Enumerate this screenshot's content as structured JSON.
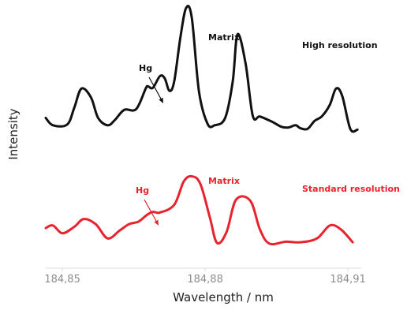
{
  "chart_data": {
    "type": "line",
    "title": "",
    "xlabel": "Wavelength / nm",
    "ylabel": "Intensity",
    "x_ticks": [
      {
        "value": 184.85,
        "label": "184,85"
      },
      {
        "value": 184.88,
        "label": "184,88"
      },
      {
        "value": 184.91,
        "label": "184,91"
      }
    ],
    "xlim": [
      184.8465,
      184.9128
    ],
    "ylim": [
      0,
      1
    ],
    "grid": false,
    "legend": "none",
    "series": [
      {
        "name": "High resolution",
        "color": "#111111",
        "x": [
          184.8465,
          184.848,
          184.851,
          184.8525,
          184.854,
          184.856,
          184.8575,
          184.8595,
          184.861,
          184.863,
          184.8655,
          184.8675,
          184.868,
          184.869,
          184.8705,
          184.8715,
          184.8725,
          184.8735,
          184.8748,
          184.876,
          184.8772,
          184.8787,
          184.8805,
          184.882,
          184.8842,
          184.8858,
          184.8868,
          184.8885,
          184.89,
          184.8915,
          184.894,
          184.896,
          184.8975,
          184.899,
          184.9,
          184.9015,
          184.903,
          184.9045,
          184.9062,
          184.9075,
          184.9088,
          184.9105,
          184.912
        ],
        "y": [
          0.25,
          0.2,
          0.205,
          0.32,
          0.45,
          0.39,
          0.25,
          0.2,
          0.235,
          0.305,
          0.31,
          0.45,
          0.465,
          0.455,
          0.535,
          0.52,
          0.435,
          0.5,
          0.8,
          1.0,
          0.93,
          0.43,
          0.21,
          0.2,
          0.25,
          0.5,
          0.82,
          0.62,
          0.265,
          0.26,
          0.225,
          0.19,
          0.185,
          0.2,
          0.18,
          0.175,
          0.23,
          0.26,
          0.34,
          0.45,
          0.4,
          0.175,
          0.17
        ]
      },
      {
        "name": "Standard resolution",
        "color": "#e8232e",
        "x": [
          184.8465,
          184.848,
          184.85,
          184.8525,
          184.8545,
          184.857,
          184.8595,
          184.862,
          184.864,
          184.866,
          184.8677,
          184.869,
          184.8705,
          184.8735,
          184.8755,
          184.8772,
          184.879,
          184.881,
          184.8825,
          184.8845,
          184.8865,
          184.8895,
          184.8915,
          184.8935,
          184.897,
          184.9,
          184.9035,
          184.9062,
          184.9085,
          184.911
        ],
        "y": [
          0.42,
          0.44,
          0.38,
          0.43,
          0.49,
          0.45,
          0.34,
          0.4,
          0.45,
          0.47,
          0.52,
          0.545,
          0.54,
          0.6,
          0.78,
          0.82,
          0.76,
          0.5,
          0.305,
          0.39,
          0.64,
          0.63,
          0.41,
          0.3,
          0.315,
          0.31,
          0.34,
          0.44,
          0.41,
          0.31
        ]
      }
    ],
    "annotations": [
      {
        "text": "Matrix",
        "color": "#111111"
      },
      {
        "text": "High resolution",
        "color": "#111111"
      },
      {
        "text": "Hg",
        "color": "#111111"
      },
      {
        "text": "Matrix",
        "color": "#e8232e"
      },
      {
        "text": "Standard resolution",
        "color": "#e8232e"
      },
      {
        "text": "Hg",
        "color": "#e8232e"
      }
    ]
  }
}
